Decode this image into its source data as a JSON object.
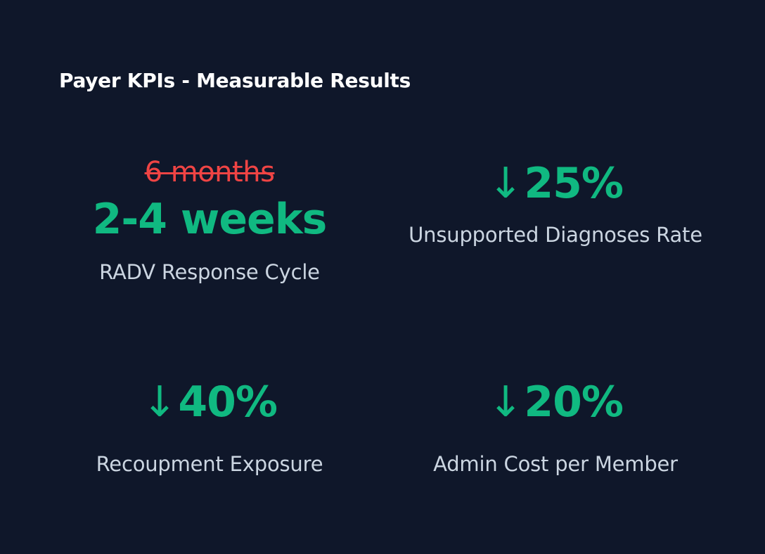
{
  "title": "Payer KPIs - Measurable Results",
  "colors": {
    "background": "#0f172a",
    "positive": "#10b981",
    "negative": "#ef4444",
    "label": "#cbd5e1",
    "title": "#ffffff"
  },
  "kpis": [
    {
      "previous_value": "6 months",
      "value": "2-4 weeks",
      "label": "RADV Response Cycle"
    },
    {
      "arrow": "↓",
      "value": "25%",
      "label": "Unsupported Diagnoses Rate"
    },
    {
      "arrow": "↓",
      "value": "40%",
      "label": "Recoupment Exposure"
    },
    {
      "arrow": "↓",
      "value": "20%",
      "label": "Admin Cost per Member"
    }
  ]
}
